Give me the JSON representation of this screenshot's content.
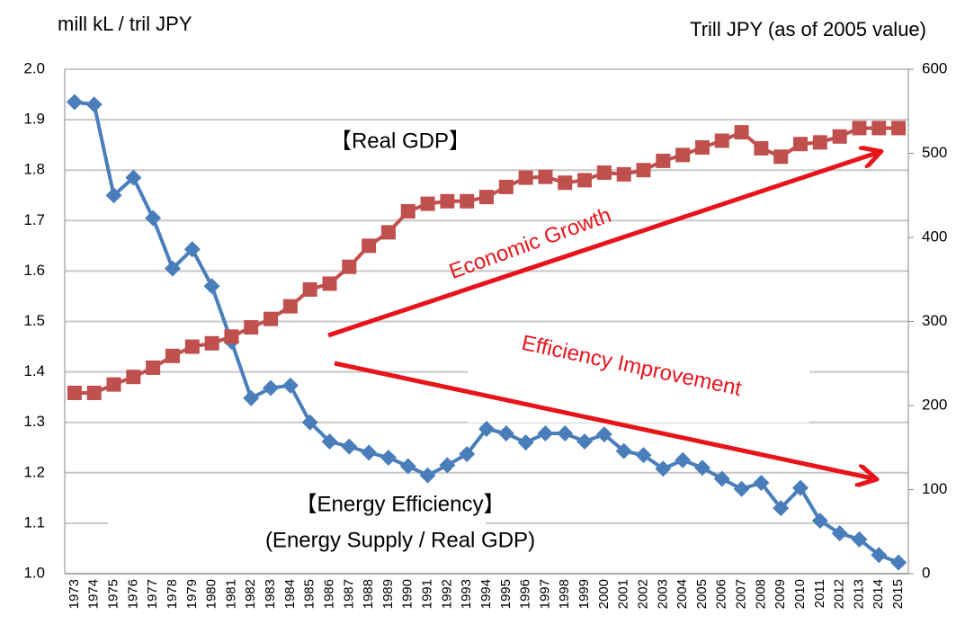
{
  "chart_data": {
    "type": "line",
    "y_label": "mill kL / tril JPY",
    "y2_label": "Trill JPY (as of 2005 value)",
    "annotations": [
      "【Real GDP】",
      "【Energy Efficiency】",
      "(Energy Supply / Real GDP)",
      "Economic Growth",
      "Efficiency Improvement"
    ],
    "categories": [
      "1973",
      "1974",
      "1975",
      "1976",
      "1977",
      "1978",
      "1979",
      "1980",
      "1981",
      "1982",
      "1983",
      "1984",
      "1985",
      "1986",
      "1987",
      "1988",
      "1989",
      "1990",
      "1991",
      "1992",
      "1993",
      "1994",
      "1995",
      "1996",
      "1997",
      "1998",
      "1999",
      "2000",
      "2001",
      "2002",
      "2003",
      "2004",
      "2005",
      "2006",
      "2007",
      "2008",
      "2009",
      "2010",
      "2011",
      "2012",
      "2013",
      "2014",
      "2015"
    ],
    "series": [
      {
        "color": "#4a7ebb",
        "marker": "diamond",
        "axis": "y",
        "values": [
          1.935,
          1.93,
          1.75,
          1.785,
          1.705,
          1.605,
          1.643,
          1.57,
          1.46,
          1.348,
          1.368,
          1.373,
          1.3,
          1.262,
          1.252,
          1.24,
          1.23,
          1.213,
          1.195,
          1.215,
          1.237,
          1.287,
          1.278,
          1.26,
          1.278,
          1.278,
          1.262,
          1.276,
          1.243,
          1.235,
          1.208,
          1.225,
          1.21,
          1.188,
          1.168,
          1.18,
          1.13,
          1.17,
          1.105,
          1.08,
          1.068,
          1.037,
          1.022
        ]
      },
      {
        "color": "#c0504d",
        "marker": "square",
        "axis": "y2",
        "values": [
          215,
          215,
          225,
          234,
          245,
          259,
          270,
          274,
          282,
          293,
          303,
          318,
          338,
          345,
          365,
          390,
          406,
          431,
          440,
          443,
          443,
          448,
          460,
          471,
          472,
          465,
          468,
          477,
          475,
          480,
          491,
          498,
          507,
          515,
          525,
          506,
          496,
          511,
          513,
          520,
          530,
          530,
          530
        ]
      }
    ],
    "ylim": [
      1,
      2
    ],
    "yticks": [
      {
        "value": 1,
        "label": "1.0"
      },
      1.1,
      1.2,
      1.3,
      1.4,
      1.5,
      1.6,
      1.7,
      1.8,
      1.9,
      {
        "value": 2,
        "label": "2.0"
      }
    ],
    "y2lim": [
      0,
      600
    ],
    "y2ticks": [
      0,
      100,
      200,
      300,
      400,
      500,
      600
    ],
    "grid": true
  }
}
